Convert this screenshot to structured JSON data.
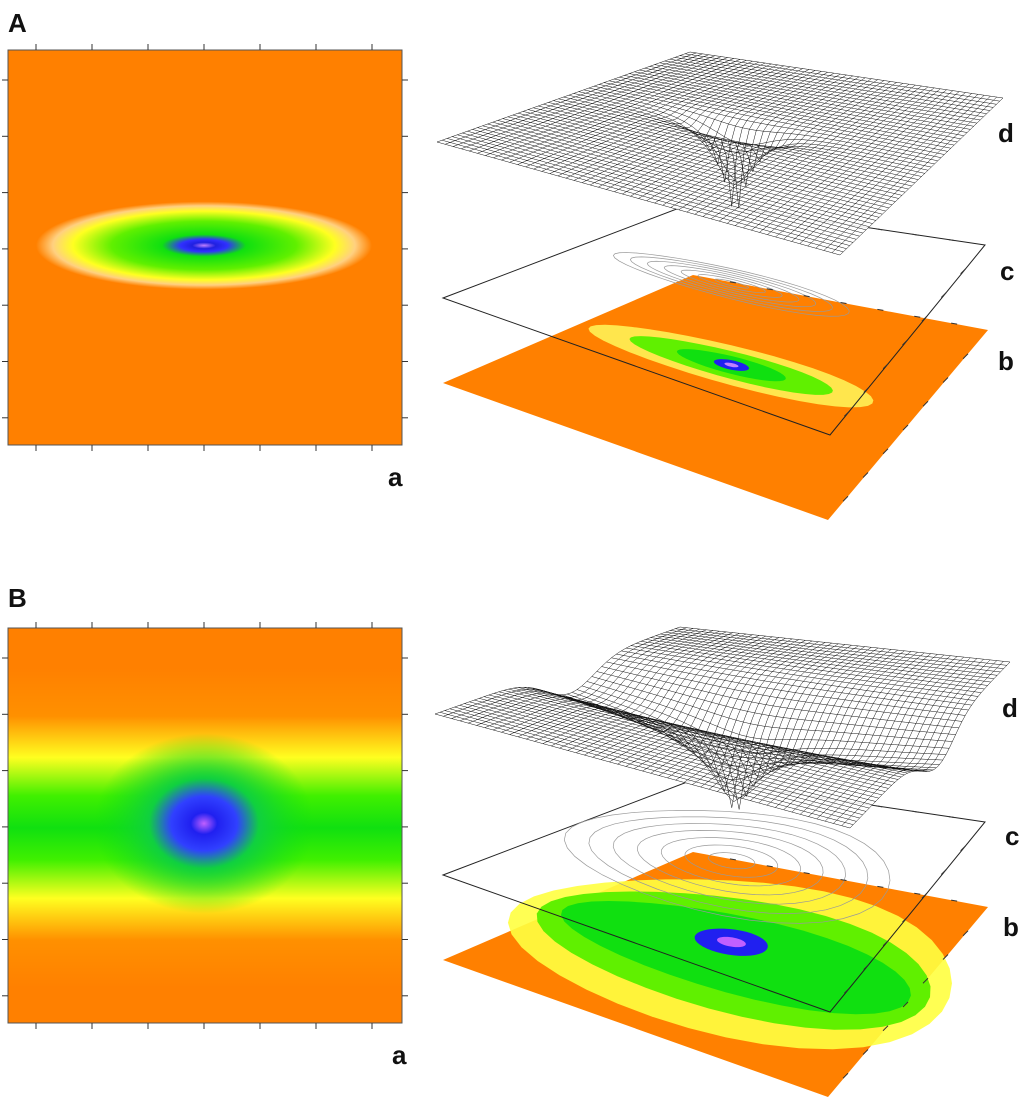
{
  "panels": [
    {
      "label": "A",
      "heatmap_label": "a",
      "layer_labels": [
        "d",
        "c",
        "b"
      ]
    },
    {
      "label": "B",
      "heatmap_label": "a",
      "layer_labels": [
        "d",
        "c",
        "b"
      ]
    }
  ]
}
